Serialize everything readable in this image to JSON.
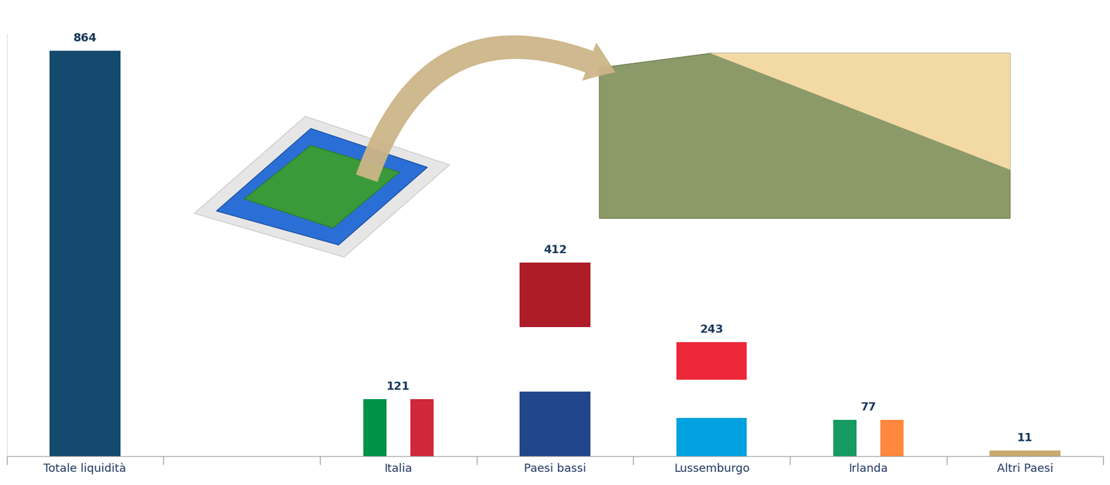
{
  "chart_data": {
    "type": "bar",
    "categories": [
      "Totale liquidità",
      null,
      "Italia",
      "Paesi bassi",
      "Lussemburgo",
      "Irlanda",
      "Altri Paesi"
    ],
    "values": [
      864,
      null,
      121,
      412,
      243,
      77,
      11
    ],
    "colors": [
      [
        "#144a6e"
      ],
      null,
      [
        "#009246",
        "#ffffff",
        "#d0283a"
      ],
      [
        "#ae1c28",
        "#ffffff",
        "#21468b"
      ],
      [
        "#ed2939",
        "#ffffff",
        "#00a1de"
      ],
      [
        "#169b62",
        "#ffffff",
        "#ff883e"
      ],
      [
        "#c8a96e"
      ]
    ],
    "ylim": [
      0,
      900
    ],
    "data_labels": true,
    "tick_labels": "x",
    "grid": false
  }
}
